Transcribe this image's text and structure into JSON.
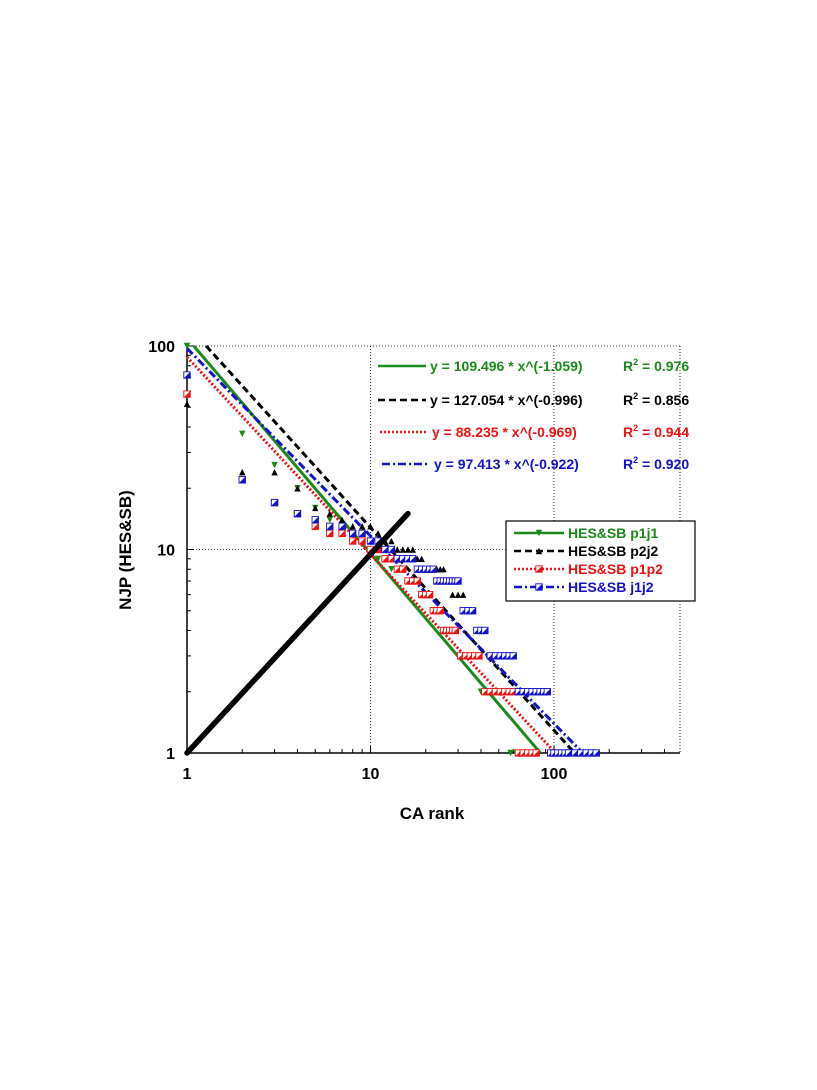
{
  "chart_data": {
    "type": "scatter",
    "title": "",
    "xlabel": "CA rank",
    "ylabel": "NJP (HES&SB)",
    "xscale": "log",
    "yscale": "log",
    "xlim": [
      1,
      450
    ],
    "ylim": [
      1,
      100
    ],
    "xticks": [
      1,
      10,
      100
    ],
    "xtick_labels": [
      "1",
      "10",
      "100"
    ],
    "yticks": [
      1,
      10,
      100
    ],
    "ytick_labels": [
      "1",
      "10",
      "100"
    ],
    "grid": true,
    "legend_position": "right-middle",
    "series": [
      {
        "key": "p1j1",
        "name": "HES&SB p1j1",
        "color": "#1a8a1a",
        "marker": "triangle-down",
        "fit": {
          "a": 109.496,
          "b": -1.059,
          "label": "y = 109.496 * x^(-1.059)",
          "r2_label": "= 0.976",
          "dash": "none"
        },
        "points": [
          [
            1,
            100
          ],
          [
            2,
            37
          ],
          [
            3,
            26
          ],
          [
            4,
            20
          ],
          [
            5,
            16
          ],
          [
            6,
            14
          ],
          [
            7,
            13
          ],
          [
            8,
            12
          ],
          [
            9,
            11
          ],
          [
            10,
            10
          ],
          [
            11,
            9
          ],
          [
            12,
            9
          ],
          [
            13,
            8
          ],
          [
            14,
            8
          ],
          [
            15,
            8
          ],
          [
            16,
            7
          ],
          [
            17,
            7
          ],
          [
            18,
            7
          ],
          [
            19,
            6
          ],
          [
            20,
            6
          ],
          [
            21,
            6
          ],
          [
            22,
            5
          ],
          [
            23,
            5
          ],
          [
            24,
            5
          ],
          [
            25,
            4
          ],
          [
            26,
            4
          ],
          [
            27,
            4
          ],
          [
            28,
            4
          ],
          [
            30,
            3
          ],
          [
            32,
            3
          ],
          [
            34,
            3
          ],
          [
            36,
            3
          ],
          [
            38,
            3
          ],
          [
            40,
            2
          ],
          [
            43,
            2
          ],
          [
            46,
            2
          ],
          [
            49,
            2
          ],
          [
            52,
            2
          ],
          [
            55,
            2
          ],
          [
            58,
            1
          ],
          [
            62,
            1
          ],
          [
            66,
            1
          ],
          [
            70,
            1
          ],
          [
            74,
            1
          ],
          [
            78,
            1
          ]
        ]
      },
      {
        "key": "p2j2",
        "name": "HES&SB p2j2",
        "color": "#000000",
        "marker": "triangle-up",
        "fit": {
          "a": 127.054,
          "b": -0.996,
          "label": "y = 127.054 * x^(-0.996)",
          "r2_label": "= 0.856",
          "dash": "7,4"
        },
        "points": [
          [
            1,
            52
          ],
          [
            2,
            24
          ],
          [
            3,
            24
          ],
          [
            4,
            20
          ],
          [
            5,
            16
          ],
          [
            6,
            15
          ],
          [
            7,
            14
          ],
          [
            8,
            13
          ],
          [
            9,
            13
          ],
          [
            10,
            13
          ],
          [
            11,
            12
          ],
          [
            12,
            11
          ],
          [
            13,
            11
          ],
          [
            14,
            10
          ],
          [
            15,
            10
          ],
          [
            16,
            10
          ],
          [
            17,
            10
          ],
          [
            18,
            9
          ],
          [
            19,
            9
          ],
          [
            20,
            8
          ],
          [
            21,
            8
          ],
          [
            22,
            8
          ],
          [
            23,
            8
          ],
          [
            24,
            8
          ],
          [
            25,
            8
          ],
          [
            26,
            7
          ],
          [
            28,
            6
          ],
          [
            30,
            6
          ],
          [
            32,
            6
          ]
        ]
      },
      {
        "key": "p1p2",
        "name": "HES&SB p1p2",
        "color": "#ee1111",
        "marker": "square-half",
        "fit": {
          "a": 88.235,
          "b": -0.969,
          "label": "y =  88.235 * x^(-0.969)",
          "r2_label": "= 0.944",
          "dash": "2,2"
        },
        "points": [
          [
            1,
            58
          ],
          [
            2,
            22
          ],
          [
            3,
            17
          ],
          [
            4,
            15
          ],
          [
            5,
            13
          ],
          [
            6,
            12
          ],
          [
            7,
            12
          ],
          [
            8,
            11
          ],
          [
            9,
            11
          ],
          [
            10,
            10
          ],
          [
            11,
            10
          ],
          [
            12,
            9
          ],
          [
            13,
            9
          ],
          [
            14,
            8
          ],
          [
            15,
            8
          ],
          [
            16,
            7
          ],
          [
            17,
            7
          ],
          [
            18,
            7
          ],
          [
            19,
            6
          ],
          [
            20,
            6
          ],
          [
            21,
            6
          ],
          [
            22,
            5
          ],
          [
            23,
            5
          ],
          [
            24,
            5
          ],
          [
            25,
            4
          ],
          [
            26,
            4
          ],
          [
            27,
            4
          ],
          [
            28,
            4
          ],
          [
            29,
            4
          ],
          [
            31,
            3
          ],
          [
            33,
            3
          ],
          [
            35,
            3
          ],
          [
            37,
            3
          ],
          [
            39,
            3
          ],
          [
            42,
            2
          ],
          [
            45,
            2
          ],
          [
            48,
            2
          ],
          [
            51,
            2
          ],
          [
            54,
            2
          ],
          [
            57,
            2
          ],
          [
            60,
            2
          ],
          [
            64,
            1
          ],
          [
            68,
            1
          ],
          [
            72,
            1
          ],
          [
            76,
            1
          ],
          [
            80,
            1
          ]
        ]
      },
      {
        "key": "j1j2",
        "name": "HES&SB j1j2",
        "color": "#1111cc",
        "marker": "square-half",
        "fit": {
          "a": 97.413,
          "b": -0.922,
          "label": "y =  97.413 * x^(-0.922)",
          "r2_label": "= 0.920",
          "dash": "8,3,2,3"
        },
        "points": [
          [
            1,
            72
          ],
          [
            2,
            22
          ],
          [
            3,
            17
          ],
          [
            4,
            15
          ],
          [
            5,
            14
          ],
          [
            6,
            13
          ],
          [
            7,
            13
          ],
          [
            8,
            12
          ],
          [
            9,
            12
          ],
          [
            10,
            11
          ],
          [
            11,
            11
          ],
          [
            12,
            10
          ],
          [
            13,
            10
          ],
          [
            14,
            9
          ],
          [
            15,
            9
          ],
          [
            16,
            9
          ],
          [
            17,
            9
          ],
          [
            18,
            8
          ],
          [
            19,
            8
          ],
          [
            20,
            8
          ],
          [
            21,
            8
          ],
          [
            22,
            8
          ],
          [
            23,
            7
          ],
          [
            24,
            7
          ],
          [
            25,
            7
          ],
          [
            26,
            7
          ],
          [
            27,
            7
          ],
          [
            28,
            7
          ],
          [
            29,
            7
          ],
          [
            30,
            7
          ],
          [
            32,
            5
          ],
          [
            34,
            5
          ],
          [
            36,
            5
          ],
          [
            38,
            4
          ],
          [
            40,
            4
          ],
          [
            42,
            4
          ],
          [
            45,
            3
          ],
          [
            48,
            3
          ],
          [
            51,
            3
          ],
          [
            54,
            3
          ],
          [
            57,
            3
          ],
          [
            60,
            3
          ],
          [
            64,
            2
          ],
          [
            68,
            2
          ],
          [
            72,
            2
          ],
          [
            76,
            2
          ],
          [
            80,
            2
          ],
          [
            84,
            2
          ],
          [
            88,
            2
          ],
          [
            92,
            2
          ],
          [
            96,
            1
          ],
          [
            100,
            1
          ],
          [
            105,
            1
          ],
          [
            110,
            1
          ],
          [
            115,
            1
          ],
          [
            120,
            1
          ],
          [
            130,
            1
          ],
          [
            140,
            1
          ],
          [
            150,
            1
          ],
          [
            160,
            1
          ],
          [
            170,
            1
          ]
        ]
      }
    ],
    "reference_line": {
      "from": [
        1,
        1
      ],
      "to": [
        16,
        15
      ],
      "color": "#000000"
    }
  },
  "r2_symbol": "R",
  "r2_sup": "2"
}
